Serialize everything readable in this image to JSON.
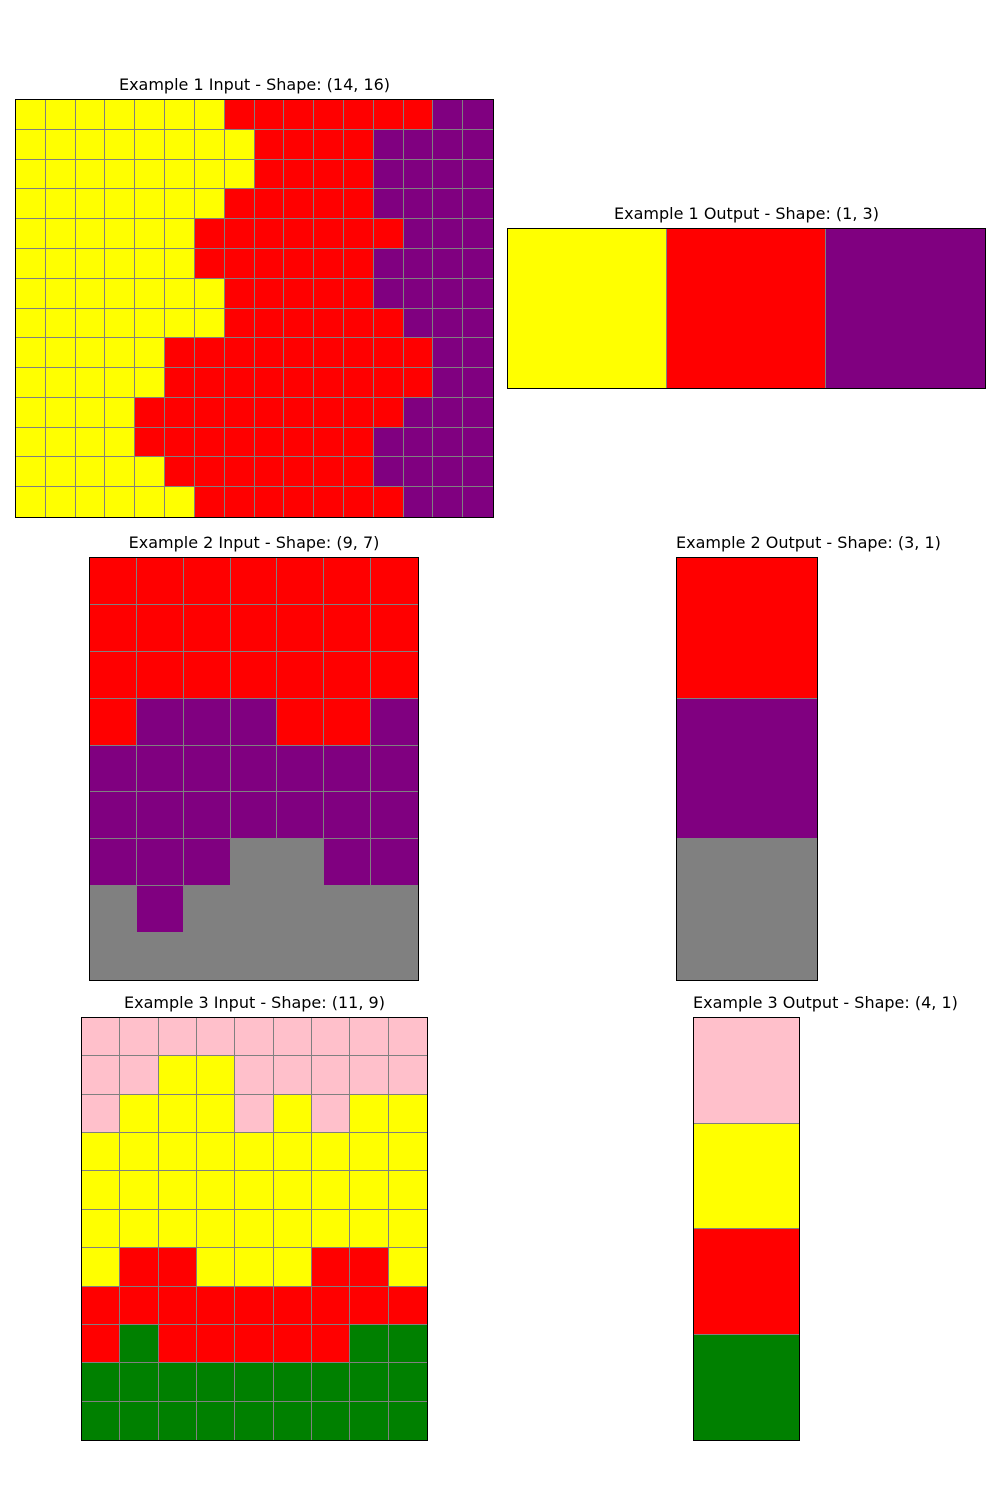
{
  "colors": {
    "Y": "#ffff00",
    "R": "#ff0000",
    "P": "#800080",
    "G": "#808080",
    "K": "#ffc0cb",
    "N": "#008000"
  },
  "examples": [
    {
      "input": {
        "title": "Example 1 Input - Shape: (14, 16)",
        "grid": [
          "YYYYYYYRRRRRRRPP",
          "YYYYYYYYRRRRPPPP",
          "YYYYYYYYRRRRPPPP",
          "YYYYYYYRRRRRPPPP",
          "YYYYYYRRRRRRRPPP",
          "YYYYYYRRRRRRPPPP",
          "YYYYYYYRRRRRPPPP",
          "YYYYYYYRRRRRRPPP",
          "YYYYYRRRRRRRRRPP",
          "YYYYYRRRRRRRRRPP",
          "YYYYRRRRRRRRRPPP",
          "YYYYRRRRRRRRPPPP",
          "YYYYYRRRRRRRPPPP",
          "YYYYYYRRRRRRRPPP"
        ]
      },
      "output": {
        "title": "Example 1 Output - Shape: (1, 3)",
        "grid": [
          "YRP"
        ]
      }
    },
    {
      "input": {
        "title": "Example 2 Input - Shape: (9, 7)",
        "grid": [
          "RRRRRRR",
          "RRRRRRR",
          "RRRRRRR",
          "RPPPRRP",
          "PPPPPPP",
          "PPPPPPP",
          "PPPGGPP",
          "GPGGGGG",
          "GGGGGGG"
        ]
      },
      "output": {
        "title": "Example 2 Output - Shape: (3, 1)",
        "grid": [
          "R",
          "P",
          "G"
        ]
      }
    },
    {
      "input": {
        "title": "Example 3 Input - Shape: (11, 9)",
        "grid": [
          "KKKKKKKKK",
          "KKYYKKKKK",
          "KYYYKYKYY",
          "YYYYYYYYY",
          "YYYYYYYYY",
          "YYYYYYYYY",
          "YRRYYYRRY",
          "RRRRRRRRR",
          "RNRRRRRNN",
          "NNNNNNNNN",
          "NNNNNNNNN"
        ]
      },
      "output": {
        "title": "Example 3 Output - Shape: (4, 1)",
        "grid": [
          "K",
          "Y",
          "R",
          "N"
        ]
      }
    }
  ]
}
